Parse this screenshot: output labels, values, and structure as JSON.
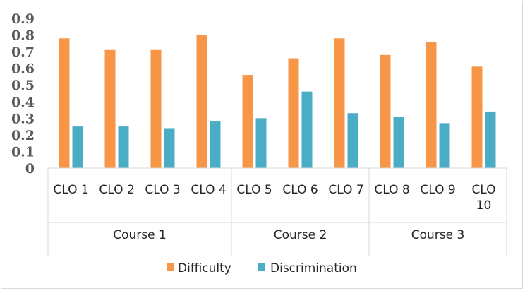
{
  "chart_data": {
    "type": "bar",
    "title": "",
    "xlabel": "",
    "ylabel": "",
    "ylim": [
      0,
      0.9
    ],
    "yticks": [
      "0",
      "0.1",
      "0.2",
      "0.3",
      "0.4",
      "0.5",
      "0.6",
      "0.7",
      "0.8",
      "0.9"
    ],
    "grid": false,
    "categories": [
      [
        "CLO 1"
      ],
      [
        "CLO 2"
      ],
      [
        "CLO 3"
      ],
      [
        "CLO 4"
      ],
      [
        "CLO 5"
      ],
      [
        "CLO 6"
      ],
      [
        "CLO 7"
      ],
      [
        "CLO 8"
      ],
      [
        "CLO 9"
      ],
      [
        "CLO",
        "10"
      ]
    ],
    "groups": [
      {
        "label": "Course 1",
        "count": 4
      },
      {
        "label": "Course 2",
        "count": 3
      },
      {
        "label": "Course 3",
        "count": 3
      }
    ],
    "series": [
      {
        "name": "Difficulty",
        "color": "#f79646",
        "values": [
          0.78,
          0.71,
          0.71,
          0.8,
          0.56,
          0.66,
          0.78,
          0.68,
          0.76,
          0.61
        ]
      },
      {
        "name": "Discrimination",
        "color": "#4bacc6",
        "values": [
          0.25,
          0.25,
          0.24,
          0.28,
          0.3,
          0.46,
          0.33,
          0.31,
          0.27,
          0.34
        ]
      }
    ],
    "legend_position": "bottom"
  }
}
